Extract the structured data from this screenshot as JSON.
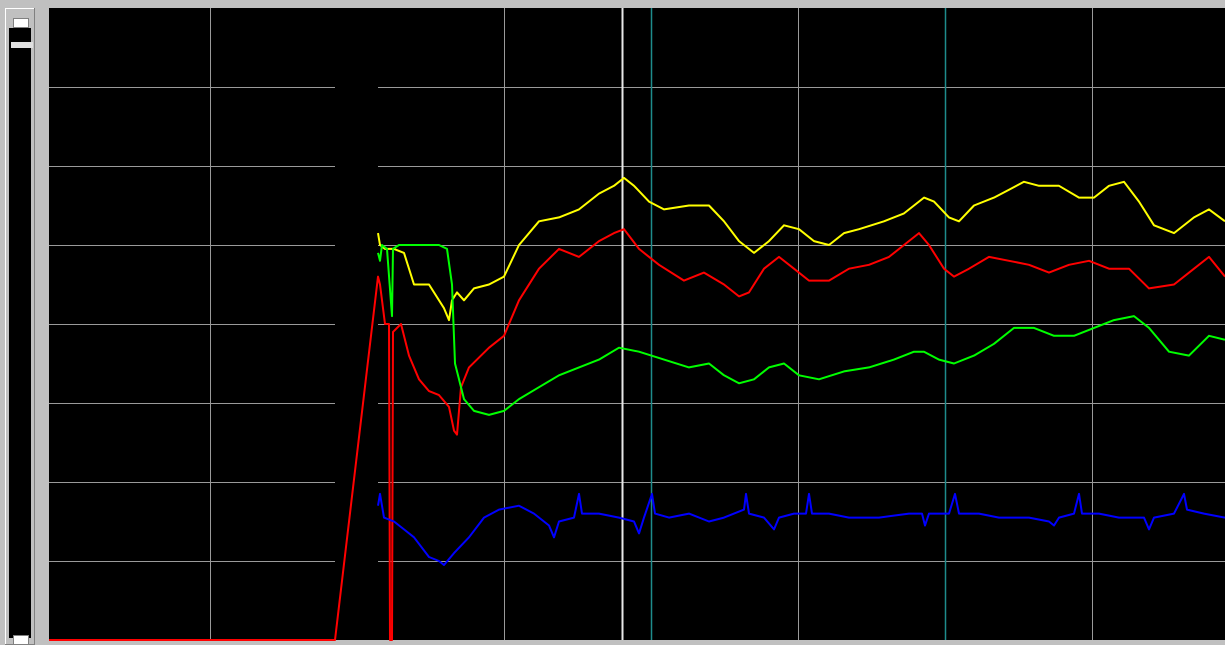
{
  "window": {
    "background": "#c0c0c0",
    "plot_background": "#000000",
    "grid_color": "#9a9a9a",
    "cursor_color": "#e8e8e8",
    "marker_color": "#1e8c8c"
  },
  "scrollbar": {
    "arrows": [
      "scroll-up-arrow-icon",
      "scroll-down-arrow-icon"
    ]
  },
  "chart_data": {
    "type": "line",
    "title": "",
    "xlabel": "",
    "ylabel": "",
    "grid": true,
    "x_range": [
      0,
      1176
    ],
    "y_range": [
      0,
      8
    ],
    "x_gridlines": [
      161,
      455,
      749,
      1043
    ],
    "y_gridlines": [
      1,
      2,
      3,
      4,
      5,
      6,
      7
    ],
    "cursor_x": 573,
    "marker_x": [
      602,
      896
    ],
    "gap_range": [
      286,
      329
    ],
    "series": [
      {
        "color": "#ffff00",
        "points": [
          [
            329,
            5.15
          ],
          [
            331,
            5.0
          ],
          [
            336,
            4.95
          ],
          [
            345,
            4.95
          ],
          [
            355,
            4.9
          ],
          [
            365,
            4.5
          ],
          [
            380,
            4.5
          ],
          [
            395,
            4.2
          ],
          [
            400,
            4.05
          ],
          [
            403,
            4.3
          ],
          [
            408,
            4.4
          ],
          [
            415,
            4.3
          ],
          [
            425,
            4.45
          ],
          [
            440,
            4.5
          ],
          [
            455,
            4.6
          ],
          [
            470,
            5.0
          ],
          [
            490,
            5.3
          ],
          [
            510,
            5.35
          ],
          [
            530,
            5.45
          ],
          [
            550,
            5.65
          ],
          [
            565,
            5.75
          ],
          [
            575,
            5.85
          ],
          [
            585,
            5.75
          ],
          [
            600,
            5.55
          ],
          [
            615,
            5.45
          ],
          [
            640,
            5.5
          ],
          [
            660,
            5.5
          ],
          [
            675,
            5.3
          ],
          [
            690,
            5.05
          ],
          [
            705,
            4.9
          ],
          [
            720,
            5.05
          ],
          [
            735,
            5.25
          ],
          [
            750,
            5.2
          ],
          [
            765,
            5.05
          ],
          [
            780,
            5.0
          ],
          [
            795,
            5.15
          ],
          [
            810,
            5.2
          ],
          [
            835,
            5.3
          ],
          [
            855,
            5.4
          ],
          [
            875,
            5.6
          ],
          [
            885,
            5.55
          ],
          [
            900,
            5.35
          ],
          [
            910,
            5.3
          ],
          [
            925,
            5.5
          ],
          [
            945,
            5.6
          ],
          [
            960,
            5.7
          ],
          [
            975,
            5.8
          ],
          [
            990,
            5.75
          ],
          [
            1010,
            5.75
          ],
          [
            1030,
            5.6
          ],
          [
            1045,
            5.6
          ],
          [
            1060,
            5.75
          ],
          [
            1075,
            5.8
          ],
          [
            1090,
            5.55
          ],
          [
            1105,
            5.25
          ],
          [
            1125,
            5.15
          ],
          [
            1145,
            5.35
          ],
          [
            1160,
            5.45
          ],
          [
            1176,
            5.3
          ]
        ]
      },
      {
        "color": "#ff0000",
        "points": [
          [
            0,
            0
          ],
          [
            286,
            0
          ],
          [
            329,
            4.6
          ],
          [
            331,
            4.5
          ],
          [
            336,
            4.0
          ],
          [
            340,
            4.0
          ],
          [
            341,
            0
          ],
          [
            343,
            0
          ],
          [
            344,
            3.9
          ],
          [
            352,
            4.0
          ],
          [
            360,
            3.6
          ],
          [
            370,
            3.3
          ],
          [
            380,
            3.15
          ],
          [
            390,
            3.1
          ],
          [
            400,
            2.95
          ],
          [
            405,
            2.65
          ],
          [
            408,
            2.6
          ],
          [
            412,
            3.2
          ],
          [
            420,
            3.45
          ],
          [
            440,
            3.7
          ],
          [
            455,
            3.85
          ],
          [
            470,
            4.3
          ],
          [
            490,
            4.7
          ],
          [
            510,
            4.95
          ],
          [
            530,
            4.85
          ],
          [
            550,
            5.05
          ],
          [
            565,
            5.15
          ],
          [
            575,
            5.2
          ],
          [
            590,
            4.95
          ],
          [
            610,
            4.75
          ],
          [
            635,
            4.55
          ],
          [
            655,
            4.65
          ],
          [
            675,
            4.5
          ],
          [
            690,
            4.35
          ],
          [
            700,
            4.4
          ],
          [
            715,
            4.7
          ],
          [
            730,
            4.85
          ],
          [
            745,
            4.7
          ],
          [
            760,
            4.55
          ],
          [
            780,
            4.55
          ],
          [
            800,
            4.7
          ],
          [
            820,
            4.75
          ],
          [
            840,
            4.85
          ],
          [
            855,
            5.0
          ],
          [
            870,
            5.15
          ],
          [
            880,
            5.0
          ],
          [
            895,
            4.7
          ],
          [
            905,
            4.6
          ],
          [
            920,
            4.7
          ],
          [
            940,
            4.85
          ],
          [
            960,
            4.8
          ],
          [
            980,
            4.75
          ],
          [
            1000,
            4.65
          ],
          [
            1020,
            4.75
          ],
          [
            1040,
            4.8
          ],
          [
            1060,
            4.7
          ],
          [
            1080,
            4.7
          ],
          [
            1100,
            4.45
          ],
          [
            1125,
            4.5
          ],
          [
            1145,
            4.7
          ],
          [
            1160,
            4.85
          ],
          [
            1176,
            4.6
          ]
        ]
      },
      {
        "color": "#00ff00",
        "points": [
          [
            329,
            4.9
          ],
          [
            331,
            4.8
          ],
          [
            333,
            5.0
          ],
          [
            338,
            4.95
          ],
          [
            343,
            4.1
          ],
          [
            344,
            4.95
          ],
          [
            350,
            5.0
          ],
          [
            360,
            5.0
          ],
          [
            375,
            5.0
          ],
          [
            390,
            5.0
          ],
          [
            398,
            4.95
          ],
          [
            403,
            4.5
          ],
          [
            406,
            3.5
          ],
          [
            410,
            3.3
          ],
          [
            415,
            3.05
          ],
          [
            425,
            2.9
          ],
          [
            440,
            2.85
          ],
          [
            455,
            2.9
          ],
          [
            470,
            3.05
          ],
          [
            490,
            3.2
          ],
          [
            510,
            3.35
          ],
          [
            530,
            3.45
          ],
          [
            550,
            3.55
          ],
          [
            570,
            3.7
          ],
          [
            590,
            3.65
          ],
          [
            615,
            3.55
          ],
          [
            640,
            3.45
          ],
          [
            660,
            3.5
          ],
          [
            675,
            3.35
          ],
          [
            690,
            3.25
          ],
          [
            705,
            3.3
          ],
          [
            720,
            3.45
          ],
          [
            735,
            3.5
          ],
          [
            750,
            3.35
          ],
          [
            770,
            3.3
          ],
          [
            795,
            3.4
          ],
          [
            820,
            3.45
          ],
          [
            845,
            3.55
          ],
          [
            865,
            3.65
          ],
          [
            875,
            3.65
          ],
          [
            890,
            3.55
          ],
          [
            905,
            3.5
          ],
          [
            925,
            3.6
          ],
          [
            945,
            3.75
          ],
          [
            965,
            3.95
          ],
          [
            985,
            3.95
          ],
          [
            1005,
            3.85
          ],
          [
            1025,
            3.85
          ],
          [
            1045,
            3.95
          ],
          [
            1065,
            4.05
          ],
          [
            1085,
            4.1
          ],
          [
            1100,
            3.95
          ],
          [
            1120,
            3.65
          ],
          [
            1140,
            3.6
          ],
          [
            1160,
            3.85
          ],
          [
            1176,
            3.8
          ]
        ]
      },
      {
        "color": "#0000ff",
        "points": [
          [
            329,
            1.7
          ],
          [
            331,
            1.85
          ],
          [
            335,
            1.55
          ],
          [
            345,
            1.5
          ],
          [
            355,
            1.4
          ],
          [
            365,
            1.3
          ],
          [
            380,
            1.05
          ],
          [
            390,
            1.0
          ],
          [
            395,
            0.95
          ],
          [
            405,
            1.1
          ],
          [
            420,
            1.3
          ],
          [
            435,
            1.55
          ],
          [
            450,
            1.65
          ],
          [
            470,
            1.7
          ],
          [
            485,
            1.6
          ],
          [
            500,
            1.45
          ],
          [
            505,
            1.3
          ],
          [
            510,
            1.5
          ],
          [
            525,
            1.55
          ],
          [
            530,
            1.85
          ],
          [
            533,
            1.6
          ],
          [
            550,
            1.6
          ],
          [
            570,
            1.55
          ],
          [
            585,
            1.5
          ],
          [
            590,
            1.35
          ],
          [
            595,
            1.55
          ],
          [
            603,
            1.85
          ],
          [
            606,
            1.6
          ],
          [
            620,
            1.55
          ],
          [
            640,
            1.6
          ],
          [
            660,
            1.5
          ],
          [
            675,
            1.55
          ],
          [
            695,
            1.65
          ],
          [
            697,
            1.85
          ],
          [
            700,
            1.6
          ],
          [
            715,
            1.55
          ],
          [
            725,
            1.4
          ],
          [
            730,
            1.55
          ],
          [
            745,
            1.6
          ],
          [
            757,
            1.6
          ],
          [
            760,
            1.85
          ],
          [
            763,
            1.6
          ],
          [
            780,
            1.6
          ],
          [
            800,
            1.55
          ],
          [
            830,
            1.55
          ],
          [
            860,
            1.6
          ],
          [
            873,
            1.6
          ],
          [
            876,
            1.45
          ],
          [
            880,
            1.6
          ],
          [
            900,
            1.6
          ],
          [
            906,
            1.85
          ],
          [
            910,
            1.6
          ],
          [
            930,
            1.6
          ],
          [
            950,
            1.55
          ],
          [
            980,
            1.55
          ],
          [
            1000,
            1.5
          ],
          [
            1005,
            1.45
          ],
          [
            1010,
            1.55
          ],
          [
            1025,
            1.6
          ],
          [
            1030,
            1.85
          ],
          [
            1033,
            1.6
          ],
          [
            1050,
            1.6
          ],
          [
            1070,
            1.55
          ],
          [
            1095,
            1.55
          ],
          [
            1100,
            1.4
          ],
          [
            1105,
            1.55
          ],
          [
            1125,
            1.6
          ],
          [
            1135,
            1.85
          ],
          [
            1138,
            1.65
          ],
          [
            1155,
            1.6
          ],
          [
            1176,
            1.55
          ]
        ]
      }
    ]
  }
}
